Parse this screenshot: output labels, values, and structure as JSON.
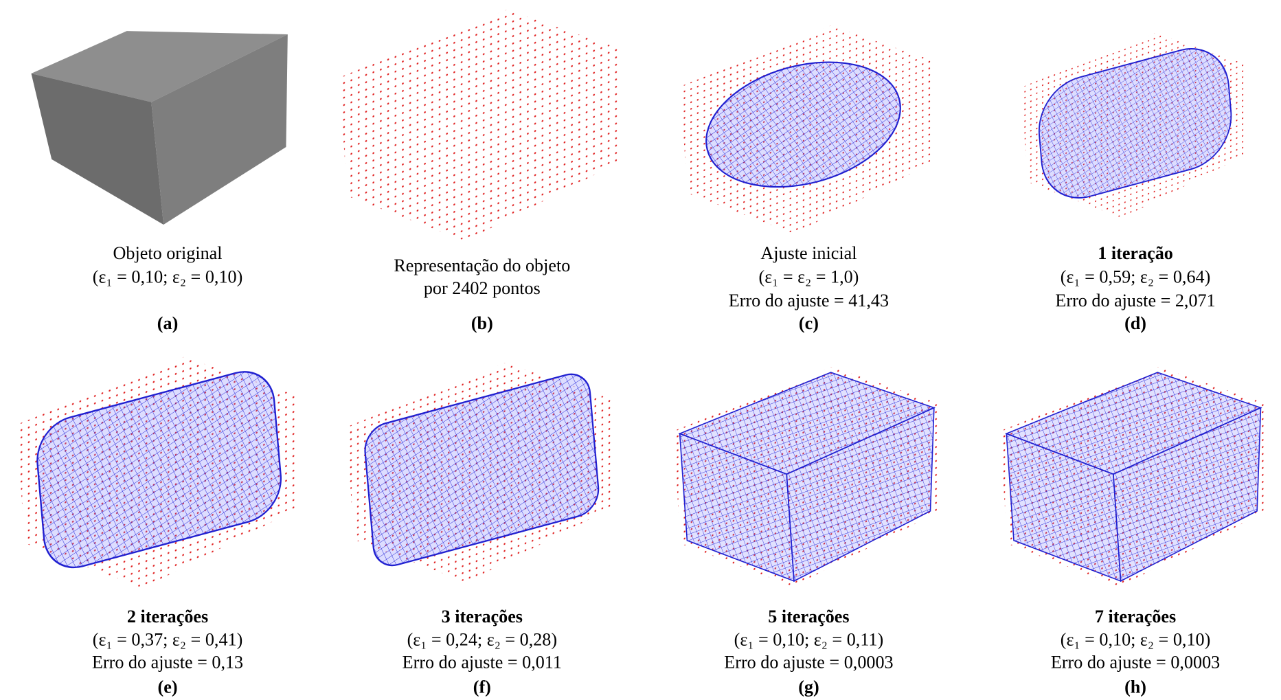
{
  "panels": [
    {
      "label": "(a)",
      "title": "Objeto original",
      "lines": [
        "(ε₁ = 0,10; ε₂ = 0,10)"
      ]
    },
    {
      "label": "(b)",
      "title": "Representação do objeto",
      "lines": [
        "por 2402 pontos"
      ]
    },
    {
      "label": "(c)",
      "title": "Ajuste inicial",
      "lines": [
        "(ε₁ = ε₂ = 1,0)",
        "Erro do ajuste = 41,43"
      ]
    },
    {
      "label": "(d)",
      "title": "1 iteração",
      "lines": [
        "(ε₁ = 0,59; ε₂ = 0,64)",
        "Erro do ajuste = 2,071"
      ]
    },
    {
      "label": "(e)",
      "title": "2 iterações",
      "lines": [
        "(ε₁ = 0,37; ε₂ = 0,41)",
        "Erro do ajuste = 0,13"
      ]
    },
    {
      "label": "(f)",
      "title": "3 iterações",
      "lines": [
        "(ε₁ = 0,24; ε₂ = 0,28)",
        "Erro do ajuste = 0,011"
      ]
    },
    {
      "label": "(g)",
      "title": "5 iterações",
      "lines": [
        "(ε₁ = 0,10; ε₂ = 0,11)",
        "Erro do ajuste = 0,0003"
      ]
    },
    {
      "label": "(h)",
      "title": "7 iterações",
      "lines": [
        "(ε₁ = 0,10; ε₂ = 0,10)",
        "Erro do ajuste = 0,0003"
      ]
    }
  ]
}
